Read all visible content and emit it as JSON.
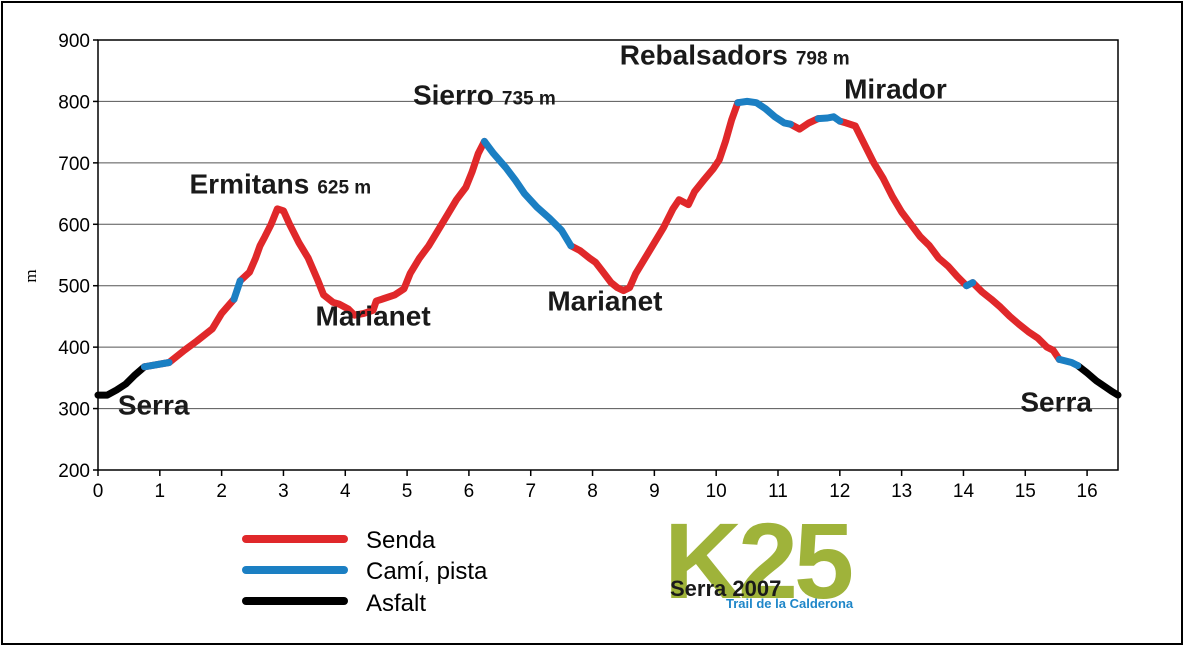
{
  "chart_data": {
    "type": "line",
    "ylabel": "m",
    "xlim": [
      0,
      16.5
    ],
    "ylim": [
      200,
      900
    ],
    "x_ticks": [
      "0",
      "1",
      "2",
      "3",
      "4",
      "5",
      "6",
      "7",
      "8",
      "9",
      "10",
      "11",
      "12",
      "13",
      "14",
      "15",
      "16"
    ],
    "y_ticks": [
      "200",
      "300",
      "400",
      "500",
      "600",
      "700",
      "800",
      "900"
    ],
    "grid": "horizontal",
    "series": [
      {
        "name": "Senda",
        "color": "#e0282a",
        "segments": [
          [
            [
              0.75,
              368
            ],
            [
              1.15,
              375
            ],
            [
              1.4,
              395
            ],
            [
              1.6,
              410
            ],
            [
              1.85,
              430
            ],
            [
              2.0,
              455
            ],
            [
              2.2,
              478
            ]
          ],
          [
            [
              2.3,
              508
            ],
            [
              2.45,
              522
            ],
            [
              2.55,
              545
            ],
            [
              2.62,
              565
            ],
            [
              2.7,
              580
            ],
            [
              2.8,
              600
            ],
            [
              2.9,
              625
            ],
            [
              3.0,
              622
            ],
            [
              3.1,
              600
            ],
            [
              3.25,
              570
            ],
            [
              3.4,
              545
            ],
            [
              3.55,
              510
            ],
            [
              3.65,
              485
            ],
            [
              3.8,
              473
            ],
            [
              3.9,
              470
            ],
            [
              4.05,
              462
            ],
            [
              4.15,
              452
            ],
            [
              4.3,
              455
            ],
            [
              4.45,
              460
            ],
            [
              4.5,
              475
            ],
            [
              4.65,
              480
            ],
            [
              4.8,
              485
            ],
            [
              4.95,
              495
            ],
            [
              5.05,
              520
            ],
            [
              5.2,
              545
            ],
            [
              5.35,
              565
            ],
            [
              5.5,
              590
            ],
            [
              5.65,
              615
            ],
            [
              5.8,
              640
            ],
            [
              5.95,
              660
            ],
            [
              6.05,
              685
            ],
            [
              6.15,
              715
            ],
            [
              6.25,
              735
            ]
          ],
          [
            [
              7.65,
              565
            ],
            [
              7.8,
              557
            ],
            [
              7.95,
              545
            ],
            [
              8.05,
              538
            ],
            [
              8.15,
              525
            ],
            [
              8.3,
              505
            ],
            [
              8.4,
              497
            ],
            [
              8.5,
              492
            ],
            [
              8.6,
              497
            ],
            [
              8.7,
              520
            ],
            [
              8.85,
              545
            ],
            [
              9.0,
              570
            ],
            [
              9.15,
              595
            ],
            [
              9.3,
              625
            ],
            [
              9.4,
              640
            ],
            [
              9.55,
              632
            ],
            [
              9.65,
              653
            ],
            [
              9.8,
              672
            ],
            [
              9.95,
              690
            ],
            [
              10.05,
              705
            ],
            [
              10.15,
              735
            ],
            [
              10.25,
              770
            ],
            [
              10.35,
              798
            ]
          ],
          [
            [
              11.2,
              763
            ],
            [
              11.35,
              755
            ],
            [
              11.5,
              765
            ],
            [
              11.65,
              772
            ]
          ],
          [
            [
              12.0,
              768
            ],
            [
              12.1,
              765
            ],
            [
              12.25,
              760
            ],
            [
              12.4,
              730
            ],
            [
              12.55,
              700
            ],
            [
              12.7,
              675
            ],
            [
              12.85,
              645
            ],
            [
              13.0,
              620
            ],
            [
              13.15,
              600
            ],
            [
              13.3,
              580
            ],
            [
              13.45,
              565
            ],
            [
              13.6,
              545
            ],
            [
              13.75,
              532
            ],
            [
              13.9,
              515
            ],
            [
              14.05,
              500
            ]
          ],
          [
            [
              14.15,
              505
            ],
            [
              14.3,
              490
            ],
            [
              14.45,
              478
            ],
            [
              14.6,
              465
            ],
            [
              14.75,
              450
            ],
            [
              14.9,
              437
            ],
            [
              15.05,
              425
            ],
            [
              15.2,
              415
            ],
            [
              15.35,
              400
            ],
            [
              15.45,
              395
            ],
            [
              15.55,
              380
            ]
          ]
        ]
      },
      {
        "name": "Camí, pista",
        "color": "#1b7fc3",
        "segments": [
          [
            [
              0.75,
              368
            ],
            [
              1.15,
              375
            ]
          ],
          [
            [
              2.2,
              478
            ],
            [
              2.3,
              508
            ]
          ],
          [
            [
              6.25,
              735
            ],
            [
              6.4,
              715
            ],
            [
              6.6,
              692
            ],
            [
              6.75,
              672
            ],
            [
              6.9,
              650
            ],
            [
              7.1,
              628
            ],
            [
              7.3,
              610
            ],
            [
              7.5,
              590
            ],
            [
              7.65,
              565
            ]
          ],
          [
            [
              10.35,
              798
            ],
            [
              10.5,
              800
            ],
            [
              10.65,
              798
            ],
            [
              10.8,
              788
            ],
            [
              10.95,
              775
            ],
            [
              11.1,
              765
            ],
            [
              11.2,
              763
            ]
          ],
          [
            [
              11.65,
              772
            ],
            [
              11.8,
              773
            ],
            [
              11.9,
              775
            ],
            [
              12.0,
              768
            ]
          ],
          [
            [
              14.05,
              500
            ],
            [
              14.15,
              505
            ]
          ],
          [
            [
              15.55,
              380
            ],
            [
              15.75,
              375
            ],
            [
              15.85,
              370
            ]
          ]
        ]
      },
      {
        "name": "Asfalt",
        "color": "#000000",
        "segments": [
          [
            [
              0.0,
              322
            ],
            [
              0.15,
              322
            ],
            [
              0.3,
              330
            ],
            [
              0.45,
              340
            ],
            [
              0.6,
              355
            ],
            [
              0.75,
              368
            ]
          ],
          [
            [
              15.85,
              370
            ],
            [
              16.0,
              358
            ],
            [
              16.15,
              345
            ],
            [
              16.3,
              335
            ],
            [
              16.4,
              328
            ],
            [
              16.5,
              322
            ]
          ]
        ]
      }
    ],
    "annotations": [
      {
        "id": "ermitans",
        "name": "Ermitans",
        "value": "625 m",
        "at": [
          2.95,
          650
        ]
      },
      {
        "id": "sierro",
        "name": "Sierro",
        "value": "735 m",
        "at": [
          6.25,
          795
        ]
      },
      {
        "id": "rebalsadors",
        "name": "Rebalsadors",
        "value": "798 m",
        "at": [
          10.3,
          860
        ]
      },
      {
        "id": "mirador",
        "name": "Mirador",
        "at": [
          12.9,
          805
        ]
      },
      {
        "id": "marianet1",
        "name": "Marianet",
        "at": [
          4.45,
          435
        ]
      },
      {
        "id": "marianet2",
        "name": "Marianet",
        "at": [
          8.2,
          460
        ]
      },
      {
        "id": "serra1",
        "name": "Serra",
        "at": [
          0.9,
          290
        ]
      },
      {
        "id": "serra2",
        "name": "Serra",
        "at": [
          15.5,
          295
        ]
      }
    ]
  },
  "legend": [
    {
      "label": "Senda",
      "color": "#e0282a"
    },
    {
      "label": "Camí, pista",
      "color": "#1b7fc3"
    },
    {
      "label": "Asfalt",
      "color": "#000000"
    }
  ],
  "logo": {
    "main": "K25",
    "event": "Serra 2007",
    "subtitle": "Trail de la Calderona",
    "main_color": "#9fb33a",
    "subtitle_color": "#1e86c8"
  }
}
